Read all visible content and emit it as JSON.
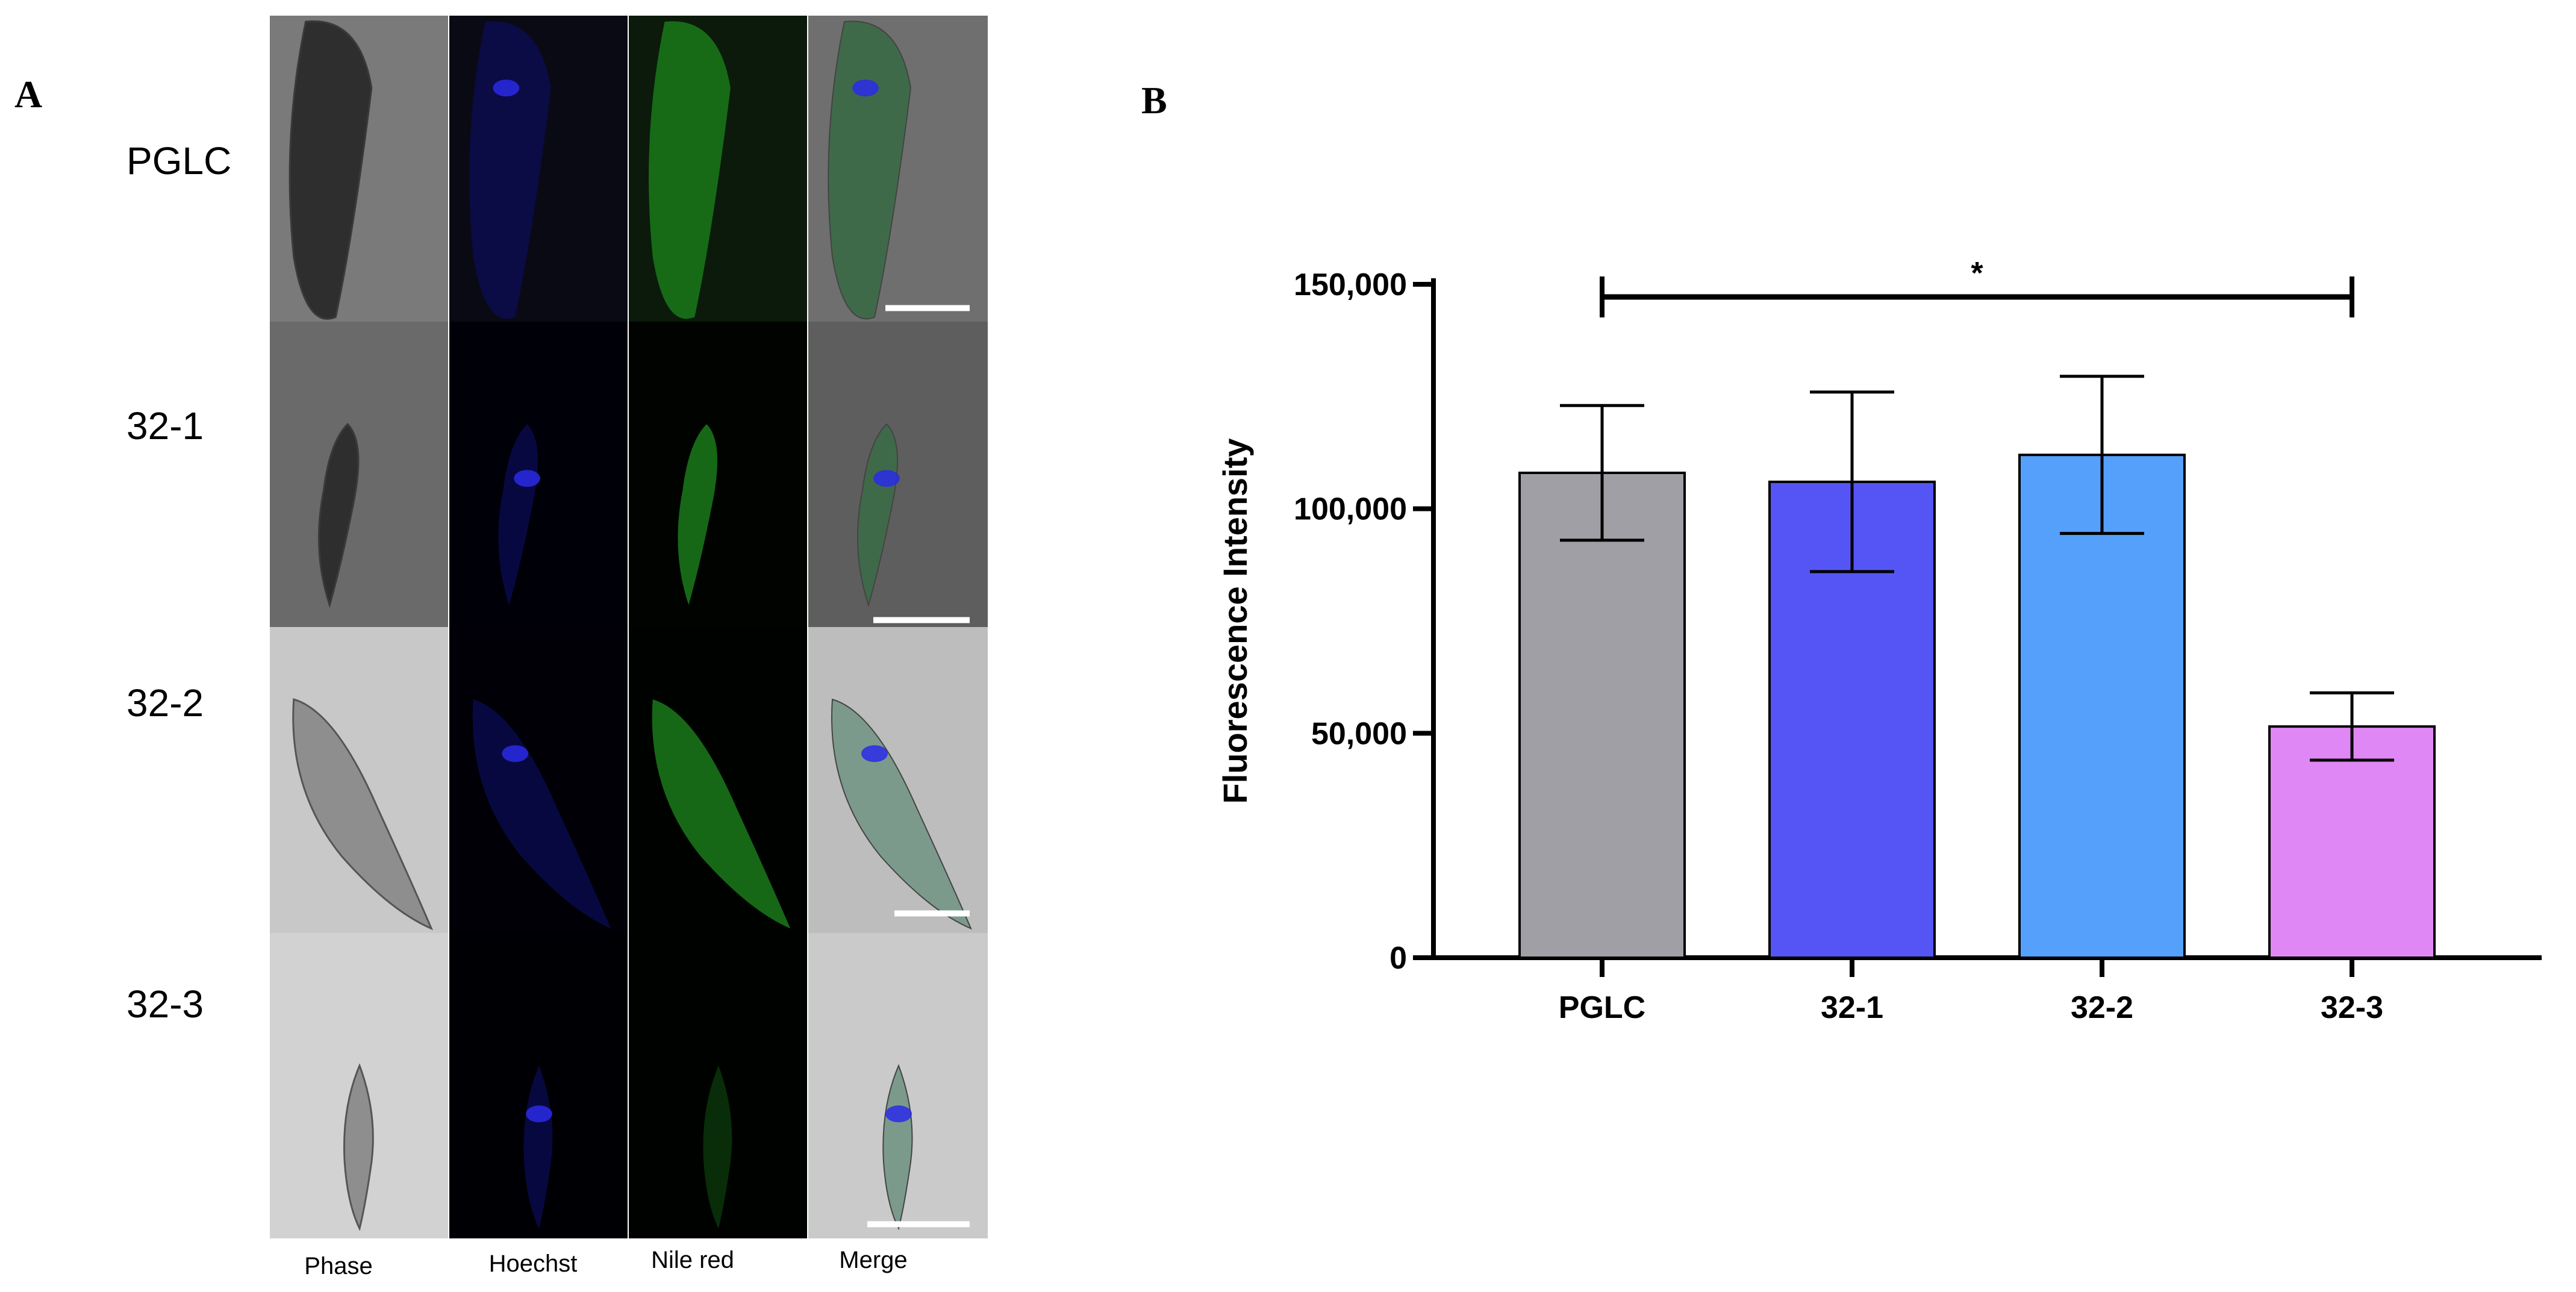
{
  "panels": {
    "a_label": "A",
    "b_label": "B"
  },
  "microscopy": {
    "rows": [
      "PGLC",
      "32-1",
      "32-2",
      "32-3"
    ],
    "columns": [
      "Phase",
      "Hoechst",
      "Nile red",
      "Merge"
    ]
  },
  "chart_data": {
    "type": "bar",
    "categories": [
      "PGLC",
      "32-1",
      "32-2",
      "32-3"
    ],
    "values": [
      108000,
      106000,
      112000,
      51500
    ],
    "errors": [
      15000,
      20000,
      17500,
      7500
    ],
    "colors": [
      "#a09fa6",
      "#5555f5",
      "#55a0fb",
      "#df87f4"
    ],
    "ylabel": "Fluorescence Intensity",
    "ylim": [
      0,
      150000
    ],
    "yticks": [
      0,
      50000,
      100000,
      150000
    ],
    "ytick_labels": [
      "0",
      "50,000",
      "100,000",
      "150,000"
    ],
    "significance": {
      "from": "PGLC",
      "to": "32-3",
      "label": "*"
    }
  }
}
